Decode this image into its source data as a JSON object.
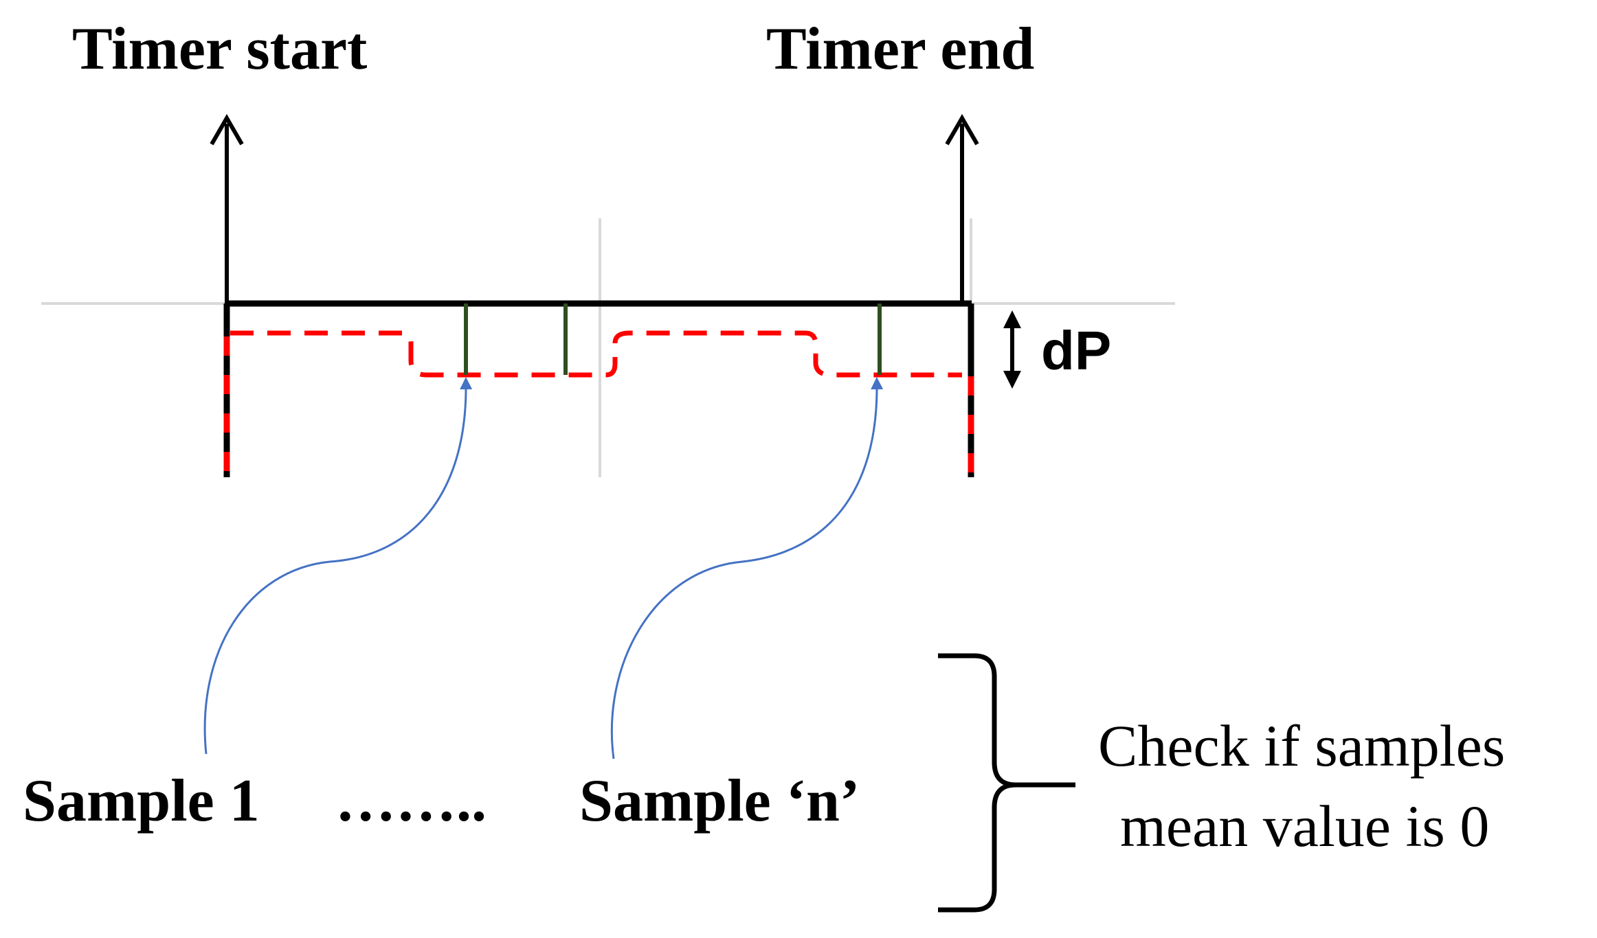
{
  "labels": {
    "timer_start": "Timer start",
    "timer_end": "Timer end",
    "delta": "dP",
    "sample_first": "Sample 1",
    "ellipsis": "……..",
    "sample_last": "Sample ‘n’",
    "check_line1": "Check if samples",
    "check_line2": "mean value is 0"
  },
  "colors": {
    "timeline": "#000000",
    "gridline": "#d9d9d9",
    "dashed_signal": "#ff0000",
    "sample_marker": "#2f4f1f",
    "pointer_arrow": "#4472c4"
  }
}
